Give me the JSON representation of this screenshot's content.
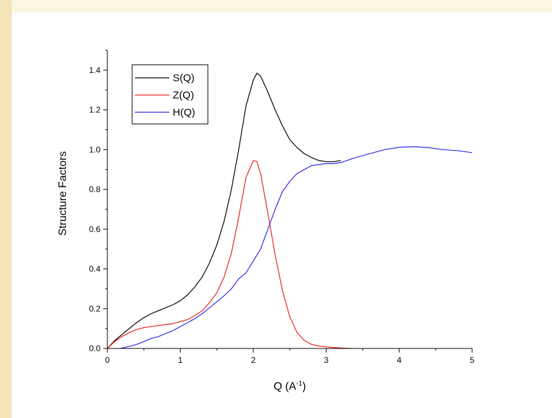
{
  "chart_data": {
    "type": "line",
    "xlabel": "Q (A",
    "xlabel_sup": "-1",
    "xlabel_end": ")",
    "ylabel": "Structure Factors",
    "xlim": [
      0,
      5
    ],
    "ylim": [
      0,
      1.5
    ],
    "xticks": [
      "0",
      "1",
      "2",
      "3",
      "4",
      "5"
    ],
    "yticks": [
      "0.0",
      "0.2",
      "0.4",
      "0.6",
      "0.8",
      "1.0",
      "1.2",
      "1.4"
    ],
    "grid": false,
    "legend_position": "top-left",
    "series": [
      {
        "name": "S(Q)",
        "color": "#000000",
        "x": [
          0,
          0.1,
          0.2,
          0.3,
          0.4,
          0.5,
          0.6,
          0.7,
          0.8,
          0.9,
          1.0,
          1.1,
          1.2,
          1.3,
          1.4,
          1.5,
          1.6,
          1.7,
          1.8,
          1.9,
          2.0,
          2.05,
          2.1,
          2.2,
          2.3,
          2.4,
          2.5,
          2.6,
          2.7,
          2.8,
          2.9,
          3.0,
          3.1,
          3.2
        ],
        "y": [
          0.0,
          0.04,
          0.07,
          0.1,
          0.13,
          0.155,
          0.175,
          0.19,
          0.205,
          0.22,
          0.24,
          0.27,
          0.31,
          0.36,
          0.43,
          0.52,
          0.64,
          0.8,
          1.0,
          1.22,
          1.35,
          1.385,
          1.37,
          1.29,
          1.2,
          1.12,
          1.05,
          1.01,
          0.98,
          0.96,
          0.945,
          0.94,
          0.94,
          0.945
        ]
      },
      {
        "name": "Z(Q)",
        "color": "#e8211f",
        "x": [
          0,
          0.1,
          0.2,
          0.3,
          0.4,
          0.5,
          0.6,
          0.7,
          0.8,
          0.9,
          1.0,
          1.1,
          1.2,
          1.3,
          1.4,
          1.5,
          1.6,
          1.7,
          1.8,
          1.9,
          2.0,
          2.05,
          2.1,
          2.2,
          2.3,
          2.4,
          2.5,
          2.6,
          2.7,
          2.8,
          2.9,
          3.0,
          3.1,
          3.2,
          3.35
        ],
        "y": [
          0.0,
          0.035,
          0.06,
          0.08,
          0.095,
          0.105,
          0.11,
          0.115,
          0.12,
          0.125,
          0.135,
          0.145,
          0.165,
          0.19,
          0.23,
          0.28,
          0.36,
          0.48,
          0.66,
          0.86,
          0.945,
          0.94,
          0.88,
          0.68,
          0.47,
          0.29,
          0.16,
          0.08,
          0.04,
          0.02,
          0.012,
          0.008,
          0.005,
          0.002,
          0.0
        ]
      },
      {
        "name": "H(Q)",
        "color": "#2d2be6",
        "x": [
          0.18,
          0.3,
          0.4,
          0.5,
          0.6,
          0.7,
          0.8,
          0.9,
          1.0,
          1.1,
          1.2,
          1.3,
          1.4,
          1.5,
          1.6,
          1.7,
          1.8,
          1.9,
          2.0,
          2.1,
          2.2,
          2.3,
          2.4,
          2.5,
          2.6,
          2.7,
          2.8,
          2.9,
          3.0,
          3.1,
          3.2,
          3.4,
          3.6,
          3.8,
          4.0,
          4.2,
          4.4,
          4.6,
          4.8,
          5.0
        ],
        "y": [
          0.0,
          0.01,
          0.02,
          0.035,
          0.05,
          0.06,
          0.075,
          0.09,
          0.11,
          0.13,
          0.15,
          0.175,
          0.205,
          0.235,
          0.265,
          0.3,
          0.35,
          0.38,
          0.44,
          0.5,
          0.6,
          0.7,
          0.79,
          0.84,
          0.88,
          0.9,
          0.92,
          0.925,
          0.93,
          0.93,
          0.935,
          0.96,
          0.98,
          1.0,
          1.012,
          1.015,
          1.01,
          1.0,
          0.995,
          0.985
        ]
      }
    ]
  }
}
